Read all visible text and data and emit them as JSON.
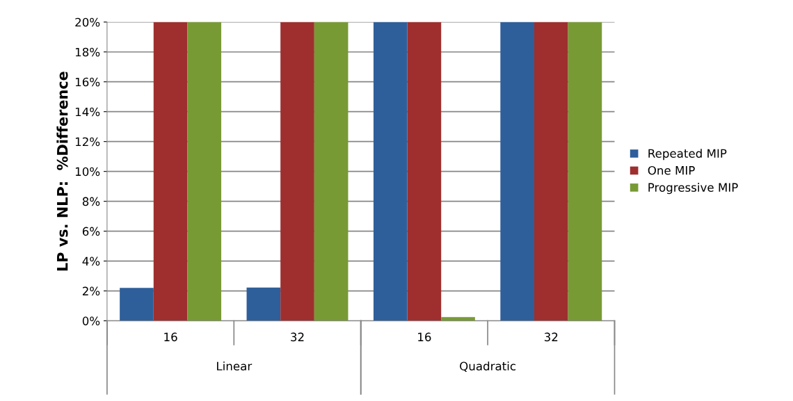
{
  "chart_data": {
    "type": "bar",
    "ylabel": "LP vs. NLP:  %Difference",
    "categories": [
      "16",
      "32",
      "16",
      "32"
    ],
    "annotations": [
      "Linear",
      "Quadratic"
    ],
    "series": [
      {
        "name": "Repeated MIP",
        "color": "#2e5f9a",
        "values": [
          2.2,
          2.23,
          20,
          20
        ]
      },
      {
        "name": "One MIP",
        "color": "#9e2f2e",
        "values": [
          20,
          20,
          20,
          20
        ]
      },
      {
        "name": "Progressive MIP",
        "color": "#789a35",
        "values": [
          20,
          20,
          0.25,
          20
        ]
      }
    ],
    "ylim": [
      0,
      20
    ],
    "yticks": [
      {
        "value": 0,
        "label": "0%"
      },
      {
        "value": 2,
        "label": "2%"
      },
      {
        "value": 4,
        "label": "4%"
      },
      {
        "value": 6,
        "label": "6%"
      },
      {
        "value": 8,
        "label": "8%"
      },
      {
        "value": 10,
        "label": "10%"
      },
      {
        "value": 12,
        "label": "12%"
      },
      {
        "value": 14,
        "label": "14%"
      },
      {
        "value": 16,
        "label": "16%"
      },
      {
        "value": 18,
        "label": "18%"
      },
      {
        "value": 20,
        "label": "20%"
      }
    ],
    "grid": "y",
    "legend": "right"
  }
}
